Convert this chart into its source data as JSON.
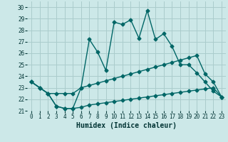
{
  "title": "",
  "xlabel": "Humidex (Indice chaleur)",
  "bg_color": "#cce8e8",
  "grid_color": "#aacccc",
  "line_color": "#006666",
  "xlim": [
    -0.5,
    23.5
  ],
  "ylim": [
    21,
    30.5
  ],
  "yticks": [
    21,
    22,
    23,
    24,
    25,
    26,
    27,
    28,
    29,
    30
  ],
  "xticks": [
    0,
    1,
    2,
    3,
    4,
    5,
    6,
    7,
    8,
    9,
    10,
    11,
    12,
    13,
    14,
    15,
    16,
    17,
    18,
    19,
    20,
    21,
    22,
    23
  ],
  "line1_x": [
    0,
    1,
    2,
    3,
    4,
    5,
    6,
    7,
    8,
    9,
    10,
    11,
    12,
    13,
    14,
    15,
    16,
    17,
    18,
    19,
    20,
    21,
    22,
    23
  ],
  "line1_y": [
    23.5,
    23.0,
    22.5,
    21.4,
    21.2,
    21.2,
    23.0,
    27.2,
    26.1,
    24.5,
    28.7,
    28.5,
    28.9,
    27.3,
    29.7,
    27.2,
    27.7,
    26.6,
    25.0,
    25.0,
    24.3,
    23.5,
    22.7,
    22.2
  ],
  "line2_x": [
    0,
    1,
    2,
    3,
    4,
    5,
    6,
    7,
    8,
    9,
    10,
    11,
    12,
    13,
    14,
    15,
    16,
    17,
    18,
    19,
    20,
    21,
    22,
    23
  ],
  "line2_y": [
    23.5,
    23.0,
    22.5,
    22.5,
    22.5,
    22.5,
    23.0,
    23.2,
    23.4,
    23.6,
    23.8,
    24.0,
    24.2,
    24.4,
    24.6,
    24.8,
    25.0,
    25.2,
    25.4,
    25.6,
    25.8,
    24.2,
    23.5,
    22.2
  ],
  "line3_x": [
    0,
    1,
    2,
    3,
    4,
    5,
    6,
    7,
    8,
    9,
    10,
    11,
    12,
    13,
    14,
    15,
    16,
    17,
    18,
    19,
    20,
    21,
    22,
    23
  ],
  "line3_y": [
    23.5,
    23.0,
    22.5,
    21.4,
    21.2,
    21.2,
    21.3,
    21.5,
    21.6,
    21.7,
    21.8,
    21.9,
    22.0,
    22.1,
    22.2,
    22.3,
    22.4,
    22.5,
    22.6,
    22.7,
    22.8,
    22.9,
    23.0,
    22.2
  ],
  "marker": "D",
  "markersize": 2.5,
  "linewidth": 1.0
}
